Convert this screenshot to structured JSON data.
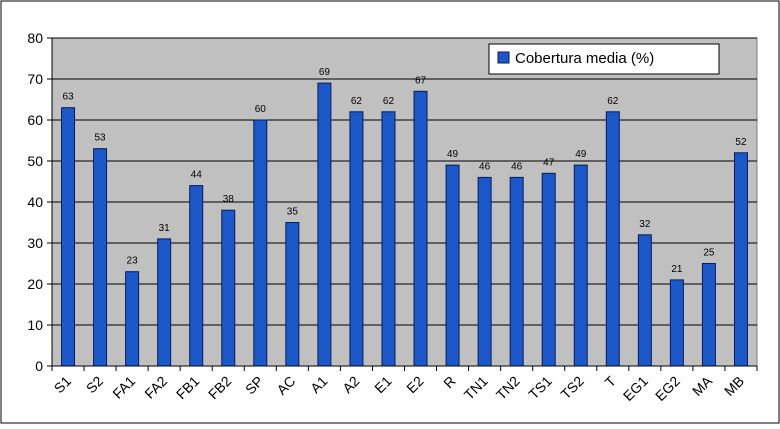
{
  "chart_data": {
    "type": "bar",
    "categories": [
      "S1",
      "S2",
      "FA1",
      "FA2",
      "FB1",
      "FB2",
      "SP",
      "AC",
      "A1",
      "A2",
      "E1",
      "E2",
      "R",
      "TN1",
      "TN2",
      "TS1",
      "TS2",
      "T",
      "EG1",
      "EG2",
      "MA",
      "MB"
    ],
    "series": [
      {
        "name": "Cobertura media (%)",
        "values": [
          63,
          53,
          23,
          31,
          44,
          38,
          60,
          35,
          69,
          62,
          62,
          67,
          49,
          46,
          46,
          47,
          49,
          62,
          32,
          21,
          25,
          52
        ]
      }
    ],
    "title": "",
    "xlabel": "",
    "ylabel": "",
    "ylim": [
      0,
      80
    ],
    "yticks": [
      0,
      10,
      20,
      30,
      40,
      50,
      60,
      70,
      80
    ],
    "grid": true,
    "legend_position": "top-right",
    "colors": {
      "bar_fill": "#1c58c8",
      "bar_stroke": "#0a1a5a",
      "plot_background": "#c0c0c0",
      "gridline": "#000000"
    }
  }
}
